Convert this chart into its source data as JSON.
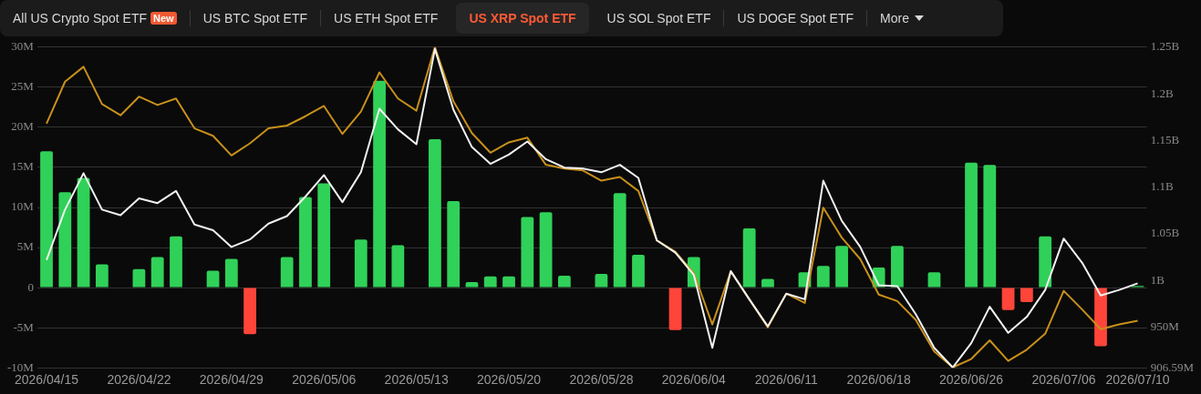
{
  "chart_data": {
    "type": "bar",
    "title": "US XRP Spot ETF",
    "annotations": [
      "All US Crypto Spot ETF",
      "New",
      "US BTC Spot ETF",
      "US ETH Spot ETF",
      "US SOL Spot ETF",
      "US DOGE Spot ETF",
      "More"
    ],
    "categories": [
      "2026/04/15",
      null,
      null,
      null,
      null,
      "2026/04/22",
      null,
      null,
      null,
      null,
      "2026/04/29",
      null,
      null,
      null,
      null,
      "2026/05/06",
      null,
      null,
      null,
      null,
      "2026/05/13",
      null,
      null,
      null,
      null,
      "2026/05/20",
      null,
      null,
      null,
      null,
      "2026/05/28",
      null,
      null,
      null,
      null,
      "2026/06/04",
      null,
      null,
      null,
      null,
      "2026/06/11",
      null,
      null,
      null,
      null,
      "2026/06/18",
      null,
      null,
      null,
      null,
      "2026/06/26",
      null,
      null,
      null,
      null,
      "2026/07/06",
      null,
      null,
      null,
      "2026/07/10"
    ],
    "series": [
      {
        "values": [
          17000000,
          11900000,
          13700000,
          2900000,
          null,
          2300000,
          3800000,
          6400000,
          null,
          2100000,
          3600000,
          -5800000,
          null,
          3800000,
          11300000,
          13000000,
          null,
          6000000,
          25800000,
          5300000,
          null,
          18500000,
          10800000,
          700000,
          1400000,
          1400000,
          8800000,
          9400000,
          1500000,
          null,
          1700000,
          11800000,
          4100000,
          null,
          -5300000,
          3800000,
          null,
          null,
          7400000,
          1100000,
          null,
          1900000,
          2700000,
          5200000,
          null,
          2500000,
          5200000,
          null,
          1900000,
          null,
          15600000,
          15300000,
          -2800000,
          -1800000,
          6400000,
          null,
          null,
          -7300000,
          null,
          200000
        ],
        "colors": [
          "#30d158",
          "#30d158",
          "#30d158",
          "#30d158",
          "#30d158",
          "#30d158",
          "#30d158",
          "#30d158",
          "#30d158",
          "#30d158",
          "#30d158",
          "#ff453a",
          "#30d158",
          "#30d158",
          "#30d158",
          "#30d158",
          "#30d158",
          "#30d158",
          "#30d158",
          "#30d158",
          "#30d158",
          "#30d158",
          "#30d158",
          "#30d158",
          "#30d158",
          "#30d158",
          "#30d158",
          "#30d158",
          "#30d158",
          "#30d158",
          "#30d158",
          "#30d158",
          "#30d158",
          "#30d158",
          "#ff453a",
          "#30d158",
          "#30d158",
          "#30d158",
          "#30d158",
          "#30d158",
          "#30d158",
          "#30d158",
          "#30d158",
          "#30d158",
          "#30d158",
          "#30d158",
          "#30d158",
          "#30d158",
          "#30d158",
          "#30d158",
          "#30d158",
          "#30d158",
          "#ff453a",
          "#ff453a",
          "#30d158",
          "#30d158",
          "#30d158",
          "#ff453a",
          "#30d158",
          "#30d158"
        ]
      },
      {
        "type": "line",
        "axis": "y2",
        "color": "#f2f2f2",
        "values": [
          1022000000,
          1076000000,
          1115000000,
          1076000000,
          1070000000,
          1088000000,
          1083000000,
          1096000000,
          1060000000,
          1054000000,
          1036000000,
          1044000000,
          1061000000,
          1069000000,
          1090000000,
          1113000000,
          1084000000,
          1116000000,
          1184000000,
          1162000000,
          1146000000,
          1248000000,
          1183000000,
          1143000000,
          1125000000,
          1135000000,
          1149000000,
          1130000000,
          1121000000,
          1120000000,
          1116000000,
          1124000000,
          1110000000,
          1043000000,
          1030000000,
          1006000000,
          928000000,
          1010000000,
          980000000,
          951000000,
          986000000,
          980000000,
          1107000000,
          1064000000,
          1036000000,
          995000000,
          994000000,
          964000000,
          928000000,
          907000000,
          933000000,
          972000000,
          944000000,
          961000000,
          990000000,
          1045000000,
          1019000000,
          984000000,
          990000000,
          997000000
        ]
      },
      {
        "type": "line",
        "axis": "y2",
        "color": "#c8901a",
        "values": [
          1168000000,
          1213000000,
          1229000000,
          1189000000,
          1177000000,
          1197000000,
          1188000000,
          1195000000,
          1163000000,
          1155000000,
          1134000000,
          1147000000,
          1163000000,
          1166000000,
          1176000000,
          1187000000,
          1157000000,
          1181000000,
          1223000000,
          1195000000,
          1182000000,
          1250000000,
          1192000000,
          1158000000,
          1137000000,
          1148000000,
          1153000000,
          1124000000,
          1120000000,
          1118000000,
          1107000000,
          1111000000,
          1096000000,
          1043000000,
          1031000000,
          1008000000,
          953000000,
          1010000000,
          980000000,
          950000000,
          986000000,
          976000000,
          1078000000,
          1046000000,
          1023000000,
          985000000,
          978000000,
          958000000,
          924000000,
          907000000,
          916000000,
          936000000,
          914000000,
          926000000,
          943000000,
          989000000,
          969000000,
          948000000,
          953000000,
          957000000
        ]
      }
    ],
    "ylim": [
      -10000000,
      30000000
    ],
    "yticks": [
      {
        "value": -10000000,
        "label": "-10M"
      },
      {
        "value": -5000000,
        "label": "-5M"
      },
      {
        "value": 0,
        "label": "0"
      },
      {
        "value": 5000000,
        "label": "5M"
      },
      {
        "value": 10000000,
        "label": "10M"
      },
      {
        "value": 15000000,
        "label": "15M"
      },
      {
        "value": 20000000,
        "label": "20M"
      },
      {
        "value": 25000000,
        "label": "25M"
      },
      {
        "value": 30000000,
        "label": "30M"
      }
    ],
    "y2lim": [
      906590000,
      1250000000
    ],
    "y2ticks": [
      {
        "value": 906590000,
        "label": "906.59M"
      },
      {
        "value": 950000000,
        "label": "950M"
      },
      {
        "value": 1000000000,
        "label": "1B"
      },
      {
        "value": 1050000000,
        "label": "1.05B"
      },
      {
        "value": 1100000000,
        "label": "1.1B"
      },
      {
        "value": 1150000000,
        "label": "1.15B"
      },
      {
        "value": 1200000000,
        "label": "1.2B"
      },
      {
        "value": 1250000000,
        "label": "1.25B"
      }
    ],
    "grid": "y",
    "legend": false,
    "marker": "none",
    "line_style": "solid"
  }
}
